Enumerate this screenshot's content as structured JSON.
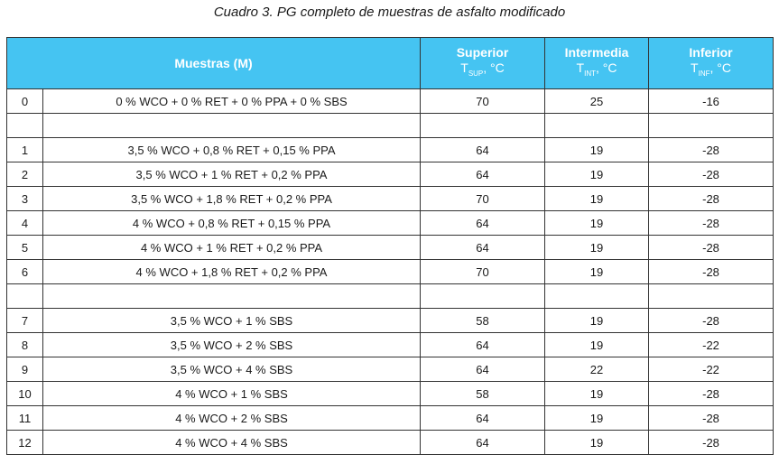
{
  "caption": "Cuadro 3. PG completo de muestras de asfalto modificado",
  "header": {
    "muestras": "Muestras (M)",
    "superior": "Superior",
    "superior_sym": "T",
    "superior_sub": "SUP",
    "superior_unit": ", °C",
    "intermedia": "Intermedia",
    "intermedia_sym": "T",
    "intermedia_sub": "INT",
    "intermedia_unit": ", °C",
    "inferior": "Inferior",
    "inferior_sym": "T",
    "inferior_sub": "INF",
    "inferior_unit": ", °C"
  },
  "rows": [
    {
      "id": "0",
      "m": "0 % WCO + 0 % RET + 0 % PPA + 0 % SBS",
      "s": "70",
      "i": "25",
      "f": "-16"
    },
    {
      "id": "",
      "m": "",
      "s": "",
      "i": "",
      "f": ""
    },
    {
      "id": "1",
      "m": "3,5 % WCO + 0,8 % RET + 0,15 % PPA",
      "s": "64",
      "i": "19",
      "f": "-28"
    },
    {
      "id": "2",
      "m": "3,5 % WCO + 1 % RET + 0,2 % PPA",
      "s": "64",
      "i": "19",
      "f": "-28"
    },
    {
      "id": "3",
      "m": "3,5 % WCO + 1,8 % RET + 0,2 % PPA",
      "s": "70",
      "i": "19",
      "f": "-28"
    },
    {
      "id": "4",
      "m": "4 % WCO + 0,8 % RET + 0,15 % PPA",
      "s": "64",
      "i": "19",
      "f": "-28"
    },
    {
      "id": "5",
      "m": "4 % WCO + 1 % RET + 0,2 % PPA",
      "s": "64",
      "i": "19",
      "f": "-28"
    },
    {
      "id": "6",
      "m": "4 % WCO + 1,8 % RET + 0,2 % PPA",
      "s": "70",
      "i": "19",
      "f": "-28"
    },
    {
      "id": "",
      "m": "",
      "s": "",
      "i": "",
      "f": ""
    },
    {
      "id": "7",
      "m": "3,5 % WCO + 1 % SBS",
      "s": "58",
      "i": "19",
      "f": "-28"
    },
    {
      "id": "8",
      "m": "3,5 % WCO + 2 % SBS",
      "s": "64",
      "i": "19",
      "f": "-22"
    },
    {
      "id": "9",
      "m": "3,5 % WCO + 4 % SBS",
      "s": "64",
      "i": "22",
      "f": "-22"
    },
    {
      "id": "10",
      "m": "4 % WCO + 1 % SBS",
      "s": "58",
      "i": "19",
      "f": "-28"
    },
    {
      "id": "11",
      "m": "4 % WCO + 2 % SBS",
      "s": "64",
      "i": "19",
      "f": "-28"
    },
    {
      "id": "12",
      "m": "4 % WCO + 4 % SBS",
      "s": "64",
      "i": "19",
      "f": "-28"
    }
  ]
}
